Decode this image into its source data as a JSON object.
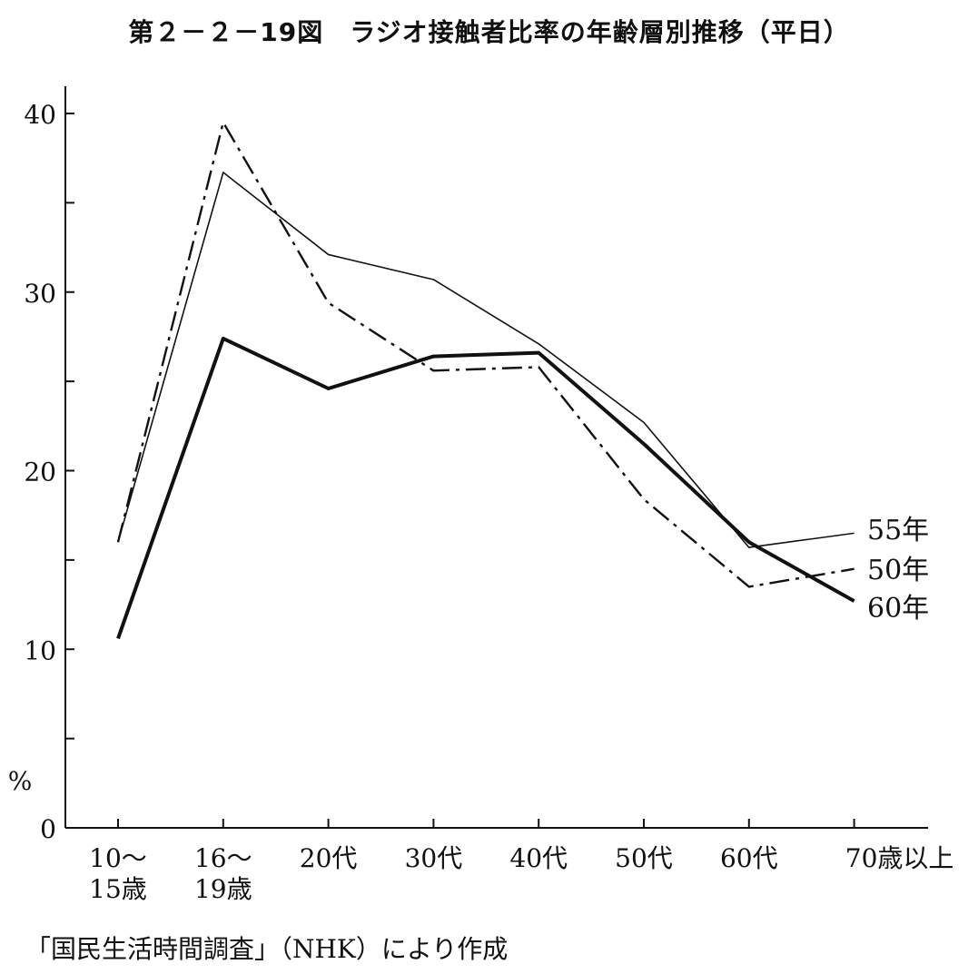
{
  "title": "第２－２－19図　ラジオ接触者比率の年齢層別推移（平日）",
  "source": "「国民生活時間調査」（NHK）により作成",
  "chart_data": {
    "type": "line",
    "title": "第２－２－19図　ラジオ接触者比率の年齢層別推移（平日）",
    "ylabel": "%",
    "xlabel": "",
    "ylim": [
      0,
      40
    ],
    "yticks": [
      0,
      10,
      20,
      30,
      40
    ],
    "yticks_minor": [
      5,
      15,
      25,
      35
    ],
    "ytick_labels": [
      "0",
      "10",
      "20",
      "30",
      "40"
    ],
    "categories": [
      [
        "10～",
        "15歳"
      ],
      [
        "16～",
        "19歳"
      ],
      [
        "20代"
      ],
      [
        "30代"
      ],
      [
        "40代"
      ],
      [
        "50代"
      ],
      [
        "60代"
      ],
      [
        "70歳以上"
      ]
    ],
    "grid": false,
    "legend": "inline labels at right end of lines",
    "series": [
      {
        "name": "55年",
        "style": "thin-solid",
        "values": [
          16.0,
          36.7,
          32.1,
          30.7,
          27.1,
          22.7,
          15.7,
          16.5
        ]
      },
      {
        "name": "50年",
        "style": "dash-dot",
        "values": [
          16.0,
          39.5,
          29.4,
          25.6,
          25.8,
          18.4,
          13.5,
          14.5
        ]
      },
      {
        "name": "60年",
        "style": "thick-solid",
        "values": [
          10.6,
          27.4,
          24.6,
          26.4,
          26.6,
          21.5,
          16.0,
          12.7
        ]
      }
    ]
  }
}
